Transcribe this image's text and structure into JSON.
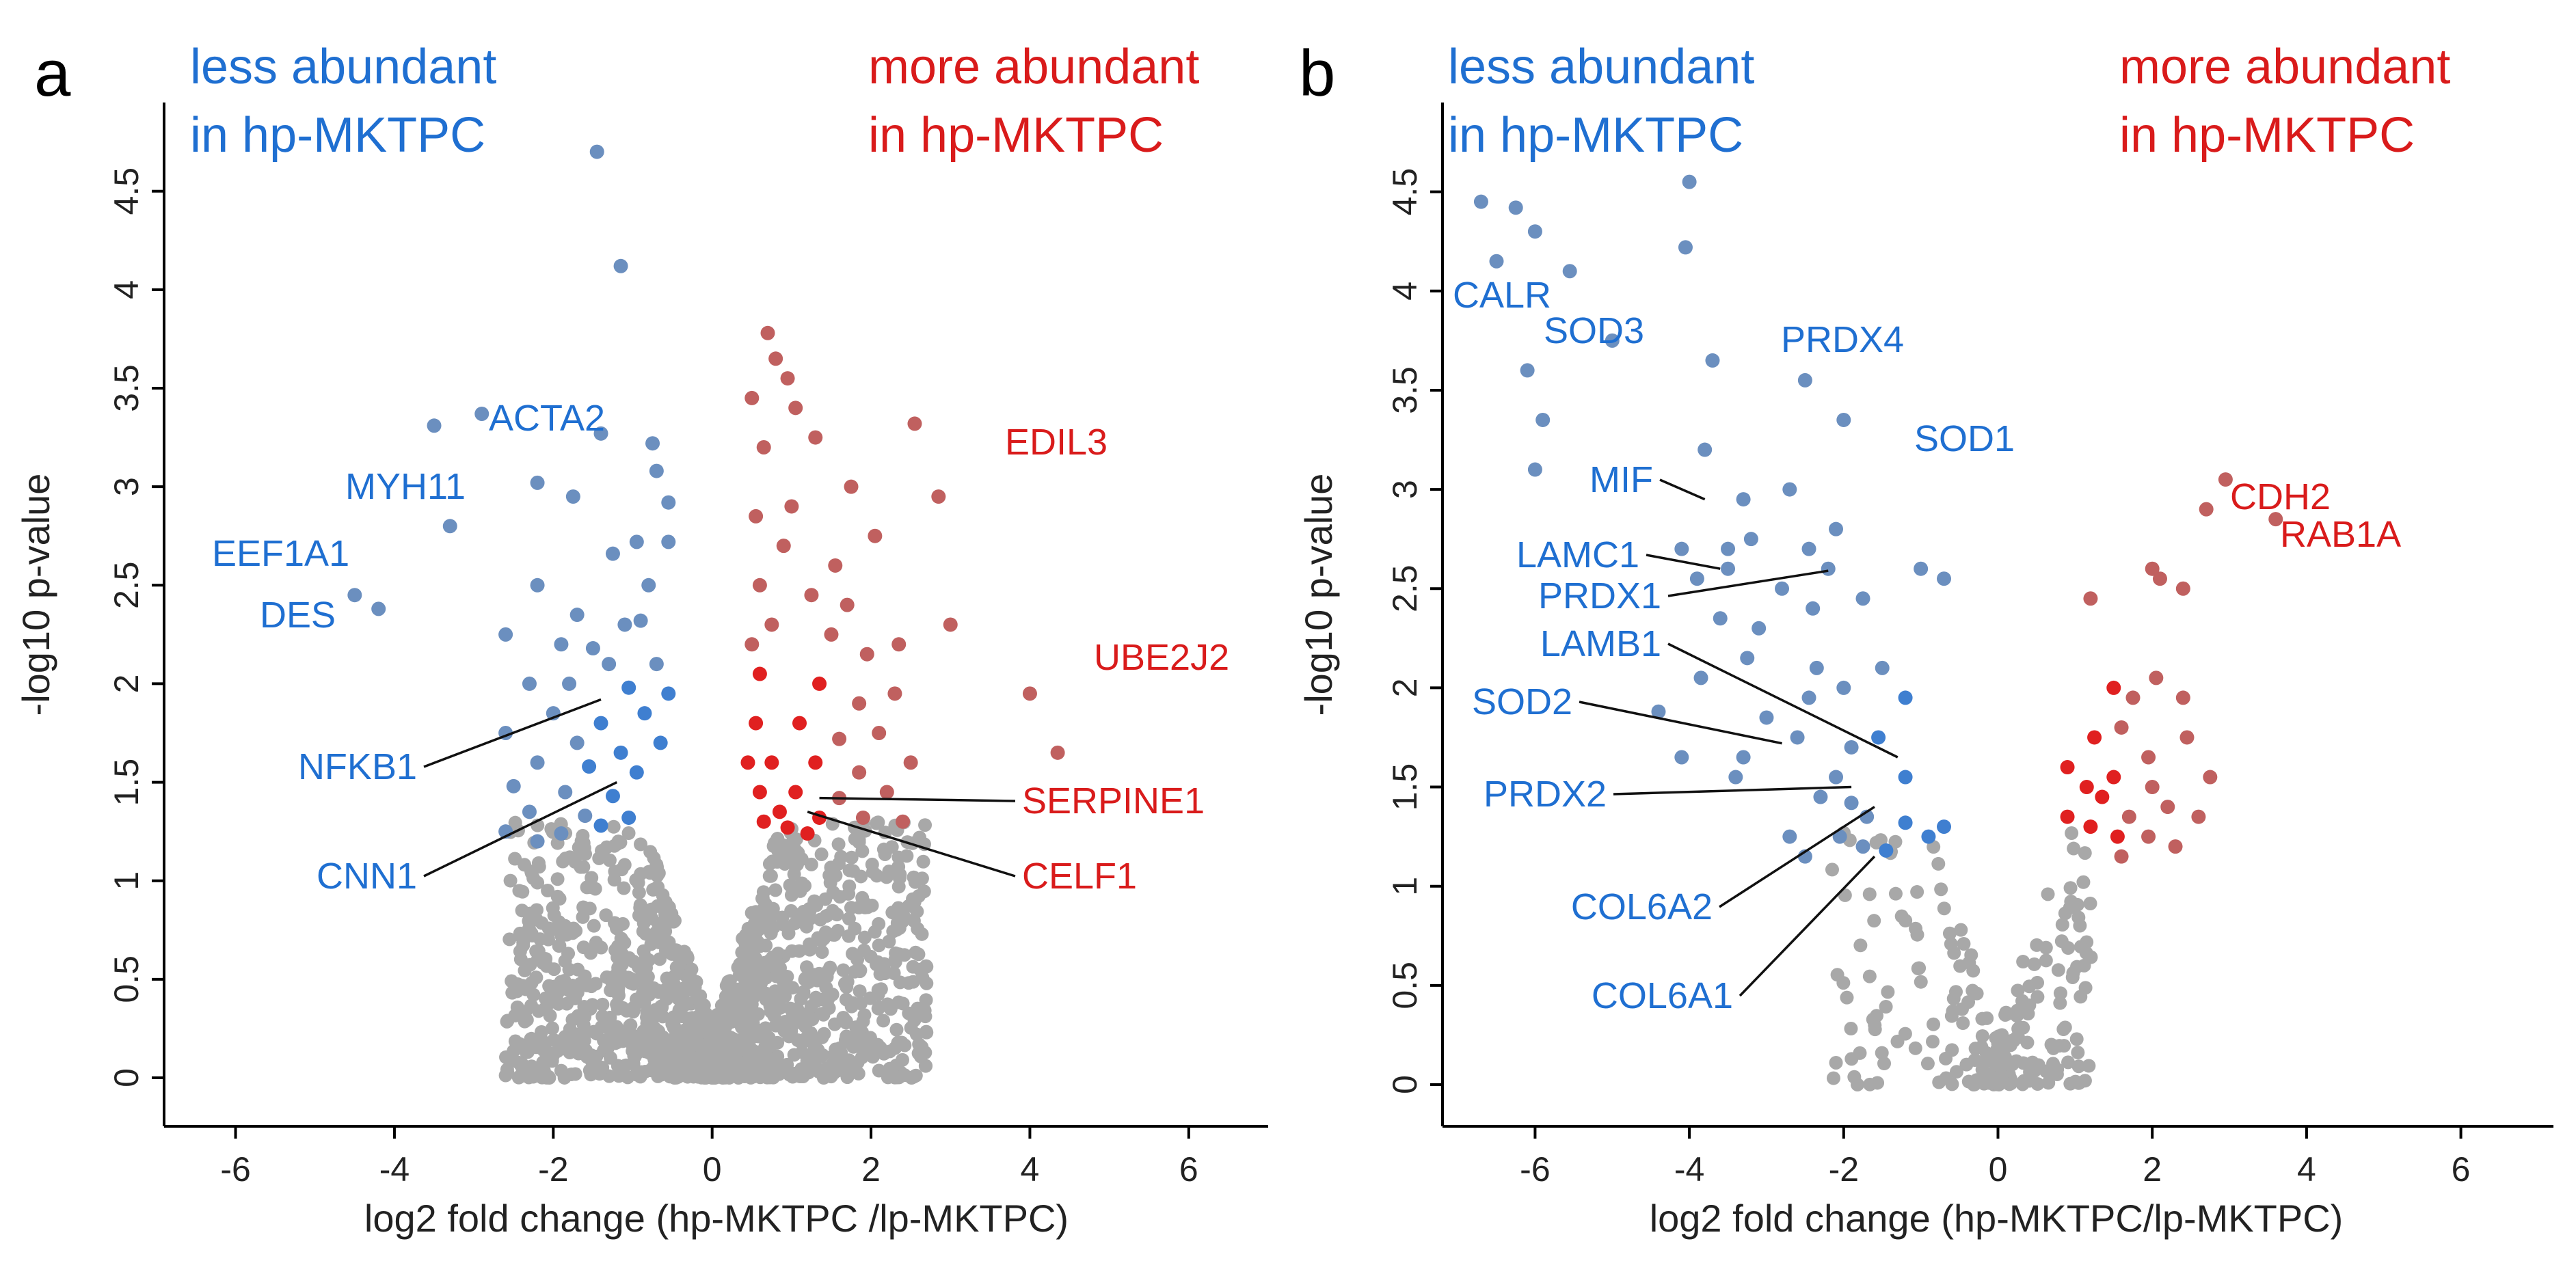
{
  "colors": {
    "down": "#1f6fd1",
    "up": "#d91b1b",
    "down_point": "#6b8fbf",
    "up_point": "#c0605f",
    "down_sig_strong": "#3f7fd0",
    "up_sig_strong": "#e02020",
    "ns_point": "#a8a8a8",
    "axis": "#000000",
    "leader": "#111111"
  },
  "chart_data": [
    {
      "type": "scatter",
      "subtype": "volcano",
      "panel_label": "a",
      "header_left": [
        "less abundant",
        "in hp-MKTPC"
      ],
      "header_right": [
        "more abundant",
        "in hp-MKTPC"
      ],
      "xlabel": "log2 fold change (hp-MKTPC /lp-MKTPC)",
      "ylabel": "-log10 p-value",
      "xlim": [
        -6.9,
        7.0
      ],
      "ylim": [
        -0.25,
        4.95
      ],
      "xticks": [
        -6,
        -4,
        -2,
        0,
        2,
        4,
        6
      ],
      "xtick_labels": [
        "-6",
        "-4",
        "-2",
        "0",
        "2",
        "4",
        "6"
      ],
      "yticks": [
        0,
        0.5,
        1,
        1.5,
        2,
        2.5,
        3,
        3.5,
        4,
        4.5
      ],
      "ytick_labels": [
        "0",
        "0.5",
        "1",
        "1.5",
        "2",
        "2.5",
        "3",
        "3.5",
        "4",
        "4.5"
      ],
      "labeled_points": [
        {
          "gene": "ACTA2",
          "x": -3.0,
          "y": 3.4,
          "group": "down"
        },
        {
          "gene": "MYH11",
          "x": -4.7,
          "y": 3.1,
          "group": "down"
        },
        {
          "gene": "EEF1A1",
          "x": -4.6,
          "y": 2.6,
          "group": "down"
        },
        {
          "gene": "DES",
          "x": -4.3,
          "y": 2.4,
          "group": "down"
        },
        {
          "gene": "NFKB1",
          "x": -1.4,
          "y": 1.92,
          "group": "down"
        },
        {
          "gene": "CNN1",
          "x": -1.2,
          "y": 1.5,
          "group": "down"
        },
        {
          "gene": "EDIL3",
          "x": 3.6,
          "y": 3.3,
          "group": "up"
        },
        {
          "gene": "UBE2J2",
          "x": 5.4,
          "y": 2.3,
          "group": "up"
        },
        {
          "gene": "SERPINE1",
          "x": 1.35,
          "y": 1.42,
          "group": "up"
        },
        {
          "gene": "CELF1",
          "x": 1.2,
          "y": 1.35,
          "group": "up"
        }
      ],
      "series": [
        {
          "name": "less abundant",
          "group": "down",
          "points": [
            [
              -1.45,
              4.7
            ],
            [
              -1.15,
              4.12
            ],
            [
              -3.5,
              3.31
            ],
            [
              -2.9,
              3.37
            ],
            [
              -1.4,
              3.27
            ],
            [
              -0.75,
              3.22
            ],
            [
              -2.2,
              3.02
            ],
            [
              -0.7,
              3.08
            ],
            [
              -1.75,
              2.95
            ],
            [
              -0.55,
              2.92
            ],
            [
              -3.3,
              2.8
            ],
            [
              -1.25,
              2.66
            ],
            [
              -0.95,
              2.72
            ],
            [
              -0.55,
              2.72
            ],
            [
              -2.2,
              2.5
            ],
            [
              -0.8,
              2.5
            ],
            [
              -4.5,
              2.45
            ],
            [
              -4.2,
              2.38
            ],
            [
              -1.7,
              2.35
            ],
            [
              -1.1,
              2.3
            ],
            [
              -0.9,
              2.32
            ],
            [
              -2.6,
              2.25
            ],
            [
              -1.9,
              2.2
            ],
            [
              -1.5,
              2.18
            ],
            [
              -1.3,
              2.1
            ],
            [
              -0.7,
              2.1
            ],
            [
              -2.3,
              2.0
            ],
            [
              -1.8,
              2.0
            ],
            [
              -1.05,
              1.98
            ],
            [
              -0.55,
              1.95
            ],
            [
              -2.0,
              1.85
            ],
            [
              -1.4,
              1.8
            ],
            [
              -0.85,
              1.85
            ],
            [
              -2.6,
              1.75
            ],
            [
              -1.7,
              1.7
            ],
            [
              -1.15,
              1.65
            ],
            [
              -0.65,
              1.7
            ],
            [
              -2.2,
              1.6
            ],
            [
              -1.55,
              1.58
            ],
            [
              -0.95,
              1.55
            ],
            [
              -2.5,
              1.48
            ],
            [
              -1.85,
              1.45
            ],
            [
              -1.25,
              1.43
            ],
            [
              -2.3,
              1.35
            ],
            [
              -1.6,
              1.33
            ],
            [
              -1.05,
              1.32
            ],
            [
              -2.6,
              1.25
            ],
            [
              -1.9,
              1.24
            ],
            [
              -2.2,
              1.2
            ],
            [
              -1.4,
              1.28
            ]
          ]
        },
        {
          "name": "more abundant",
          "group": "up",
          "points": [
            [
              0.7,
              3.78
            ],
            [
              0.8,
              3.65
            ],
            [
              0.95,
              3.55
            ],
            [
              1.05,
              3.4
            ],
            [
              0.5,
              3.45
            ],
            [
              2.55,
              3.32
            ],
            [
              2.85,
              2.95
            ],
            [
              1.3,
              3.25
            ],
            [
              1.75,
              3.0
            ],
            [
              0.65,
              3.2
            ],
            [
              2.05,
              2.75
            ],
            [
              1.55,
              2.6
            ],
            [
              3.0,
              2.3
            ],
            [
              1.0,
              2.9
            ],
            [
              0.55,
              2.85
            ],
            [
              0.9,
              2.7
            ],
            [
              1.7,
              2.4
            ],
            [
              1.25,
              2.45
            ],
            [
              0.6,
              2.5
            ],
            [
              2.35,
              2.2
            ],
            [
              1.95,
              2.15
            ],
            [
              1.5,
              2.25
            ],
            [
              0.75,
              2.3
            ],
            [
              0.5,
              2.2
            ],
            [
              4.0,
              1.95
            ],
            [
              2.3,
              1.95
            ],
            [
              1.85,
              1.9
            ],
            [
              1.35,
              2.0
            ],
            [
              0.6,
              2.05
            ],
            [
              4.35,
              1.65
            ],
            [
              2.1,
              1.75
            ],
            [
              1.6,
              1.72
            ],
            [
              1.1,
              1.8
            ],
            [
              0.55,
              1.8
            ],
            [
              2.5,
              1.6
            ],
            [
              1.85,
              1.55
            ],
            [
              1.3,
              1.6
            ],
            [
              0.75,
              1.6
            ],
            [
              0.45,
              1.6
            ],
            [
              2.2,
              1.45
            ],
            [
              1.6,
              1.42
            ],
            [
              1.05,
              1.45
            ],
            [
              0.6,
              1.45
            ],
            [
              1.9,
              1.32
            ],
            [
              1.35,
              1.32
            ],
            [
              0.85,
              1.35
            ],
            [
              2.4,
              1.3
            ],
            [
              1.2,
              1.24
            ],
            [
              0.95,
              1.27
            ],
            [
              0.65,
              1.3
            ]
          ]
        }
      ]
    },
    {
      "type": "scatter",
      "subtype": "volcano",
      "panel_label": "b",
      "header_left": [
        "less abundant",
        "in hp-MKTPC"
      ],
      "header_right": [
        "more abundant",
        "in hp-MKTPC"
      ],
      "xlabel": "log2 fold change (hp-MKTPC/lp-MKTPC)",
      "ylabel": "-log10 p-value",
      "xlim": [
        -7.2,
        7.2
      ],
      "ylim": [
        -0.25,
        4.95
      ],
      "xticks": [
        -6,
        -4,
        -2,
        0,
        2,
        4,
        6
      ],
      "xtick_labels": [
        "-6",
        "-4",
        "-2",
        "0",
        "2",
        "4",
        "6"
      ],
      "yticks": [
        0,
        0.5,
        1,
        1.5,
        2,
        2.5,
        3,
        3.5,
        4,
        4.5
      ],
      "ytick_labels": [
        "0",
        "0.5",
        "1",
        "1.5",
        "2",
        "2.5",
        "3",
        "3.5",
        "4",
        "4.5"
      ],
      "labeled_points": [
        {
          "gene": "CALR",
          "x": -6.4,
          "y": 4.15,
          "group": "down"
        },
        {
          "gene": "SOD3",
          "x": -5.9,
          "y": 3.95,
          "group": "down"
        },
        {
          "gene": "PRDX4",
          "x": -2.8,
          "y": 3.65,
          "group": "down"
        },
        {
          "gene": "SOD1",
          "x": -1.2,
          "y": 3.35,
          "group": "down"
        },
        {
          "gene": "MIF",
          "x": -3.8,
          "y": 2.95,
          "group": "down"
        },
        {
          "gene": "LAMC1",
          "x": -3.6,
          "y": 2.6,
          "group": "down"
        },
        {
          "gene": "PRDX1",
          "x": -2.2,
          "y": 2.59,
          "group": "down"
        },
        {
          "gene": "LAMB1",
          "x": -1.3,
          "y": 1.65,
          "group": "down"
        },
        {
          "gene": "SOD2",
          "x": -2.8,
          "y": 1.72,
          "group": "down"
        },
        {
          "gene": "PRDX2",
          "x": -1.9,
          "y": 1.5,
          "group": "down"
        },
        {
          "gene": "COL6A2",
          "x": -1.6,
          "y": 1.4,
          "group": "down"
        },
        {
          "gene": "COL6A1",
          "x": -1.6,
          "y": 1.15,
          "group": "down"
        },
        {
          "gene": "CDH2",
          "x": 2.9,
          "y": 3.05,
          "group": "up"
        },
        {
          "gene": "RAB1A",
          "x": 3.5,
          "y": 2.85,
          "group": "up"
        }
      ],
      "series": [
        {
          "name": "less abundant",
          "group": "down",
          "points": [
            [
              -6.7,
              4.45
            ],
            [
              -6.5,
              4.15
            ],
            [
              -6.25,
              4.42
            ],
            [
              -6.0,
              4.3
            ],
            [
              -5.55,
              4.1
            ],
            [
              -5.0,
              3.75
            ],
            [
              -6.1,
              3.6
            ],
            [
              -5.9,
              3.35
            ],
            [
              -6.0,
              3.1
            ],
            [
              -4.0,
              4.55
            ],
            [
              -4.05,
              4.22
            ],
            [
              -3.7,
              3.65
            ],
            [
              -2.5,
              3.55
            ],
            [
              -2.0,
              3.35
            ],
            [
              -3.8,
              3.2
            ],
            [
              -3.3,
              2.95
            ],
            [
              -2.7,
              3.0
            ],
            [
              -3.5,
              2.7
            ],
            [
              -3.2,
              2.75
            ],
            [
              -4.1,
              2.7
            ],
            [
              -2.45,
              2.7
            ],
            [
              -2.1,
              2.8
            ],
            [
              -3.9,
              2.55
            ],
            [
              -3.5,
              2.6
            ],
            [
              -2.8,
              2.5
            ],
            [
              -2.4,
              2.4
            ],
            [
              -2.2,
              2.6
            ],
            [
              -3.6,
              2.35
            ],
            [
              -3.1,
              2.3
            ],
            [
              -1.75,
              2.45
            ],
            [
              -1.0,
              2.6
            ],
            [
              -0.7,
              2.55
            ],
            [
              -3.85,
              2.05
            ],
            [
              -3.25,
              2.15
            ],
            [
              -2.35,
              2.1
            ],
            [
              -1.5,
              2.1
            ],
            [
              -4.4,
              1.88
            ],
            [
              -3.0,
              1.85
            ],
            [
              -2.0,
              2.0
            ],
            [
              -1.2,
              1.95
            ],
            [
              -4.1,
              1.65
            ],
            [
              -3.4,
              1.55
            ],
            [
              -2.6,
              1.75
            ],
            [
              -1.9,
              1.7
            ],
            [
              -1.2,
              1.55
            ],
            [
              -2.3,
              1.45
            ],
            [
              -1.7,
              1.35
            ],
            [
              -2.1,
              1.55
            ],
            [
              -2.05,
              1.25
            ],
            [
              -1.75,
              1.2
            ],
            [
              -1.2,
              1.32
            ],
            [
              -0.9,
              1.25
            ],
            [
              -0.7,
              1.3
            ],
            [
              -2.5,
              1.15
            ],
            [
              -1.45,
              1.18
            ],
            [
              -1.9,
              1.42
            ],
            [
              -2.7,
              1.25
            ],
            [
              -3.3,
              1.65
            ],
            [
              -2.45,
              1.95
            ],
            [
              -1.55,
              1.75
            ]
          ]
        },
        {
          "name": "more abundant",
          "group": "up",
          "points": [
            [
              2.95,
              3.05
            ],
            [
              2.7,
              2.9
            ],
            [
              3.6,
              2.85
            ],
            [
              2.0,
              2.6
            ],
            [
              2.1,
              2.55
            ],
            [
              2.4,
              2.5
            ],
            [
              1.2,
              2.45
            ],
            [
              1.5,
              2.0
            ],
            [
              1.75,
              1.95
            ],
            [
              2.05,
              2.05
            ],
            [
              2.4,
              1.95
            ],
            [
              2.45,
              1.75
            ],
            [
              1.95,
              1.65
            ],
            [
              1.6,
              1.8
            ],
            [
              1.25,
              1.75
            ],
            [
              0.9,
              1.6
            ],
            [
              1.15,
              1.5
            ],
            [
              1.5,
              1.55
            ],
            [
              2.0,
              1.5
            ],
            [
              2.75,
              1.55
            ],
            [
              1.7,
              1.35
            ],
            [
              2.2,
              1.4
            ],
            [
              1.2,
              1.3
            ],
            [
              1.95,
              1.25
            ],
            [
              1.6,
              1.15
            ],
            [
              2.3,
              1.2
            ],
            [
              0.9,
              1.35
            ],
            [
              1.35,
              1.45
            ],
            [
              2.6,
              1.35
            ],
            [
              1.55,
              1.25
            ]
          ]
        }
      ]
    }
  ]
}
